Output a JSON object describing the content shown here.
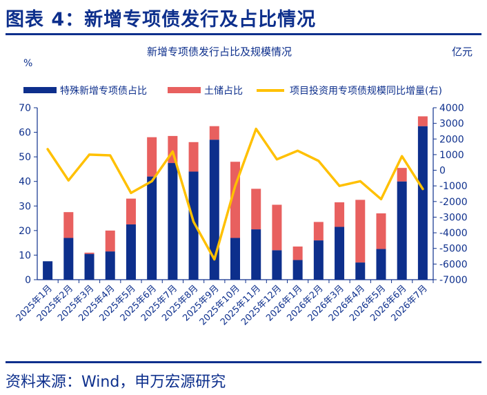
{
  "figure": {
    "title": "图表 4：新增专项债发行及占比情况",
    "source": "资料来源：Wind，申万宏源研究"
  },
  "chart_data": {
    "type": "bar",
    "title": "新增专项债发行占比及规模情况",
    "left_unit": "%",
    "right_unit": "亿元",
    "categories": [
      "2025年1月",
      "2025年2月",
      "2025年3月",
      "2025年4月",
      "2025年5月",
      "2025年6月",
      "2025年7月",
      "2025年8月",
      "2025年9月",
      "2025年10月",
      "2025年11月",
      "2025年12月",
      "2026年1月",
      "2026年2月",
      "2026年3月",
      "2026年4月",
      "2026年5月",
      "2026年6月",
      "2026年7月"
    ],
    "ylim_left": [
      0,
      70
    ],
    "yticks_left": [
      "0",
      "10",
      "20",
      "30",
      "40",
      "50",
      "60",
      "70"
    ],
    "ylim_right": [
      -7000,
      4000
    ],
    "yticks_right": [
      "-7000",
      "-6000",
      "-5000",
      "-4000",
      "-3000",
      "-2000",
      "-1000",
      "0",
      "1000",
      "2000",
      "3000",
      "4000"
    ],
    "grid": false,
    "legend_position": "top",
    "series": [
      {
        "name": "特殊新增专项债占比",
        "type": "bar",
        "stacked": true,
        "axis": "left",
        "color": "#0d2f8c",
        "values": [
          7.5,
          17,
          10.5,
          11.5,
          22.5,
          42,
          47.5,
          44,
          57,
          17,
          20.5,
          12,
          8,
          16,
          21.5,
          7,
          12.5,
          40,
          62.5
        ]
      },
      {
        "name": "土储占比",
        "type": "bar",
        "stacked": true,
        "axis": "left",
        "color": "#e8605f",
        "values": [
          0,
          10.5,
          0.5,
          8.5,
          10.5,
          16,
          11,
          12,
          5.5,
          31,
          16.5,
          18.5,
          5.5,
          7.5,
          10,
          25.5,
          14.5,
          5.5,
          4
        ]
      },
      {
        "name": "项目投资用专项债规模同比增量(右)",
        "type": "line",
        "axis": "right",
        "color": "#ffc000",
        "values": [
          1350,
          -650,
          1000,
          950,
          -1450,
          -700,
          1200,
          -3300,
          -5700,
          -1000,
          2650,
          700,
          1250,
          600,
          -1000,
          -700,
          -1850,
          900,
          -1200
        ]
      }
    ]
  }
}
